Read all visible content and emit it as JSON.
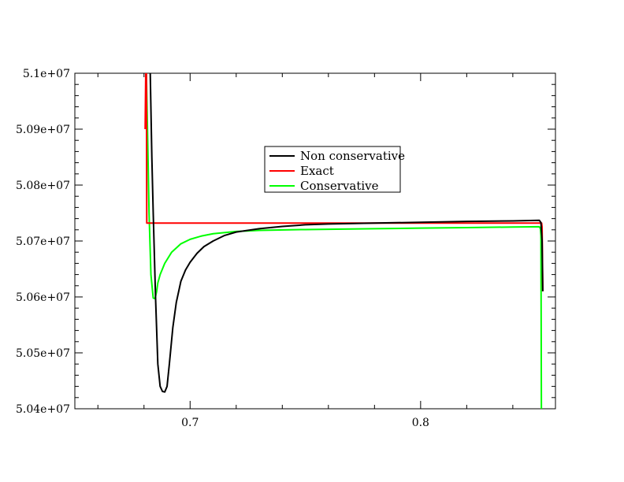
{
  "chart_data": {
    "type": "line",
    "title": "",
    "xlabel": "",
    "ylabel": "",
    "xlim": [
      0.65,
      0.8585
    ],
    "ylim": [
      50400000,
      51000000
    ],
    "x_ticks": [
      {
        "value": 0.7,
        "label": "0.7"
      },
      {
        "value": 0.8,
        "label": "0.8"
      }
    ],
    "y_ticks": [
      {
        "value": 50400000,
        "label": "5.04e+07"
      },
      {
        "value": 50500000,
        "label": "5.05e+07"
      },
      {
        "value": 50600000,
        "label": "5.06e+07"
      },
      {
        "value": 50700000,
        "label": "5.07e+07"
      },
      {
        "value": 50800000,
        "label": "5.08e+07"
      },
      {
        "value": 50900000,
        "label": "5.09e+07"
      },
      {
        "value": 51000000,
        "label": "5.1e+07"
      }
    ],
    "grid": false,
    "legend_position": "top-center",
    "series": [
      {
        "name": "Non conservative",
        "color": "#000000",
        "points": [
          [
            0.6818,
            51200000
          ],
          [
            0.6828,
            50980000
          ],
          [
            0.6834,
            50850000
          ],
          [
            0.684,
            50750000
          ],
          [
            0.685,
            50600000
          ],
          [
            0.686,
            50480000
          ],
          [
            0.687,
            50440000
          ],
          [
            0.688,
            50431000
          ],
          [
            0.689,
            50430000
          ],
          [
            0.69,
            50440000
          ],
          [
            0.691,
            50480000
          ],
          [
            0.6925,
            50545000
          ],
          [
            0.694,
            50590000
          ],
          [
            0.696,
            50628000
          ],
          [
            0.698,
            50648000
          ],
          [
            0.7,
            50662000
          ],
          [
            0.703,
            50678000
          ],
          [
            0.706,
            50690000
          ],
          [
            0.71,
            50700000
          ],
          [
            0.715,
            50710000
          ],
          [
            0.72,
            50716000
          ],
          [
            0.73,
            50722000
          ],
          [
            0.74,
            50726000
          ],
          [
            0.75,
            50729000
          ],
          [
            0.76,
            50730500
          ],
          [
            0.78,
            50732000
          ],
          [
            0.8,
            50733500
          ],
          [
            0.82,
            50735000
          ],
          [
            0.84,
            50736000
          ],
          [
            0.8515,
            50737000
          ],
          [
            0.8522,
            50733000
          ],
          [
            0.8527,
            50700000
          ],
          [
            0.853,
            50610000
          ]
        ]
      },
      {
        "name": "Exact",
        "color": "#ff0000",
        "points": [
          [
            0.6805,
            50900000
          ],
          [
            0.681,
            51100000
          ],
          [
            0.6812,
            50732000
          ],
          [
            0.7,
            50732000
          ],
          [
            0.8,
            50732000
          ],
          [
            0.8525,
            50732000
          ],
          [
            0.8527,
            50725000
          ],
          [
            0.853,
            50610000
          ]
        ]
      },
      {
        "name": "Conservative",
        "color": "#00ff00",
        "points": [
          [
            0.6808,
            51050000
          ],
          [
            0.6815,
            50900000
          ],
          [
            0.6822,
            50750000
          ],
          [
            0.683,
            50640000
          ],
          [
            0.684,
            50598000
          ],
          [
            0.6848,
            50597000
          ],
          [
            0.6855,
            50610000
          ],
          [
            0.686,
            50625000
          ],
          [
            0.687,
            50640000
          ],
          [
            0.689,
            50660000
          ],
          [
            0.692,
            50680000
          ],
          [
            0.696,
            50695000
          ],
          [
            0.7,
            50703000
          ],
          [
            0.705,
            50709000
          ],
          [
            0.71,
            50713000
          ],
          [
            0.72,
            50717000
          ],
          [
            0.73,
            50719000
          ],
          [
            0.75,
            50720500
          ],
          [
            0.78,
            50722000
          ],
          [
            0.8,
            50723000
          ],
          [
            0.82,
            50724000
          ],
          [
            0.84,
            50725000
          ],
          [
            0.8515,
            50725500
          ],
          [
            0.852,
            50722000
          ],
          [
            0.8522,
            50710000
          ],
          [
            0.8524,
            50400000
          ]
        ]
      }
    ]
  }
}
